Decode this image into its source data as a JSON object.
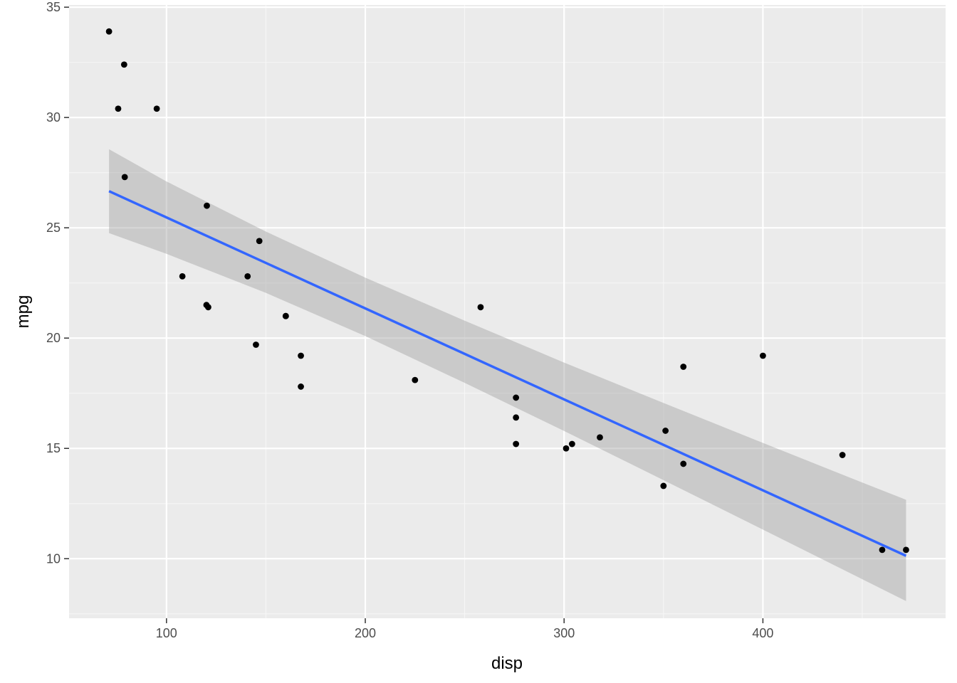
{
  "chart_data": {
    "type": "scatter",
    "xlabel": "disp",
    "ylabel": "mpg",
    "xlim": [
      51.0,
      491.9
    ],
    "ylim": [
      7.3,
      35.1
    ],
    "x_ticks": [
      100,
      200,
      300,
      400
    ],
    "y_ticks": [
      10,
      15,
      20,
      25,
      30,
      35
    ],
    "x_tick_labels": [
      "100",
      "200",
      "300",
      "400"
    ],
    "y_tick_labels": [
      "10",
      "15",
      "20",
      "25",
      "30",
      "35"
    ],
    "grid": true,
    "legend": "none",
    "points": [
      {
        "x": 160,
        "y": 21.0
      },
      {
        "x": 160,
        "y": 21.0
      },
      {
        "x": 108,
        "y": 22.8
      },
      {
        "x": 258,
        "y": 21.4
      },
      {
        "x": 360,
        "y": 18.7
      },
      {
        "x": 225,
        "y": 18.1
      },
      {
        "x": 360,
        "y": 14.3
      },
      {
        "x": 146.7,
        "y": 24.4
      },
      {
        "x": 140.8,
        "y": 22.8
      },
      {
        "x": 167.6,
        "y": 19.2
      },
      {
        "x": 167.6,
        "y": 17.8
      },
      {
        "x": 275.8,
        "y": 16.4
      },
      {
        "x": 275.8,
        "y": 17.3
      },
      {
        "x": 275.8,
        "y": 15.2
      },
      {
        "x": 472,
        "y": 10.4
      },
      {
        "x": 460,
        "y": 10.4
      },
      {
        "x": 440,
        "y": 14.7
      },
      {
        "x": 78.7,
        "y": 32.4
      },
      {
        "x": 75.7,
        "y": 30.4
      },
      {
        "x": 71.1,
        "y": 33.9
      },
      {
        "x": 120.1,
        "y": 21.5
      },
      {
        "x": 318,
        "y": 15.5
      },
      {
        "x": 304,
        "y": 15.2
      },
      {
        "x": 350,
        "y": 13.3
      },
      {
        "x": 400,
        "y": 19.2
      },
      {
        "x": 79,
        "y": 27.3
      },
      {
        "x": 120.3,
        "y": 26.0
      },
      {
        "x": 95.1,
        "y": 30.4
      },
      {
        "x": 351,
        "y": 15.8
      },
      {
        "x": 145,
        "y": 19.7
      },
      {
        "x": 301,
        "y": 15.0
      },
      {
        "x": 121,
        "y": 21.4
      }
    ],
    "fit_line": {
      "x": [
        71.1,
        472
      ],
      "y": [
        26.66,
        10.13
      ]
    },
    "confidence_band": {
      "x": [
        71.1,
        100,
        150,
        200,
        250,
        300,
        350,
        400,
        450,
        472
      ],
      "lower": [
        24.76,
        23.82,
        22.05,
        20.09,
        17.97,
        15.79,
        13.56,
        11.32,
        9.07,
        8.08
      ],
      "upper": [
        28.56,
        27.1,
        24.83,
        22.74,
        20.79,
        18.89,
        17.06,
        15.25,
        13.45,
        12.67
      ]
    },
    "colors": {
      "panel_background": "#ebebeb",
      "grid_major": "#ffffff",
      "grid_minor": "#f6f6f6",
      "points": "#000000",
      "fit_line": "#3366ff",
      "band": "#999999"
    }
  }
}
